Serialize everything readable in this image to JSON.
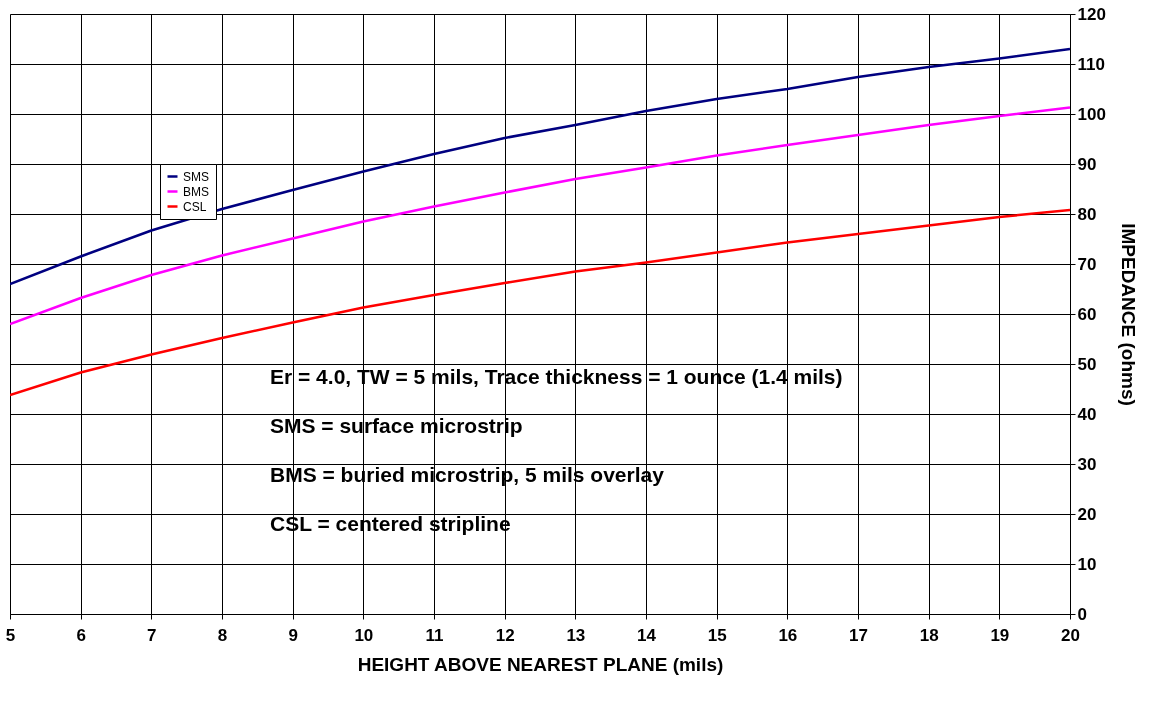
{
  "chart_data": {
    "type": "line",
    "xlabel": "HEIGHT ABOVE NEAREST PLANE (mils)",
    "ylabel": "IMPEDANCE (ohms)",
    "x": [
      5,
      6,
      7,
      8,
      9,
      10,
      11,
      12,
      13,
      14,
      15,
      16,
      17,
      18,
      19,
      20
    ],
    "series": [
      {
        "name": "SMS",
        "color": "#000080",
        "values": [
          66,
          71.5,
          76.7,
          81,
          84.8,
          88.5,
          92,
          95.2,
          97.8,
          100.6,
          103,
          105,
          107.4,
          109.4,
          111.1,
          113
        ]
      },
      {
        "name": "BMS",
        "color": "#ff00ff",
        "values": [
          58,
          63.2,
          67.8,
          71.7,
          75.1,
          78.5,
          81.5,
          84.3,
          87,
          89.3,
          91.7,
          93.8,
          95.8,
          97.8,
          99.6,
          101.3
        ]
      },
      {
        "name": "CSL",
        "color": "#ff0000",
        "values": [
          43.8,
          48.3,
          51.9,
          55.2,
          58.3,
          61.3,
          63.8,
          66.2,
          68.5,
          70.3,
          72.3,
          74.3,
          76,
          77.7,
          79.4,
          80.8
        ]
      }
    ],
    "xlim": [
      5,
      20
    ],
    "xticks": [
      5,
      6,
      7,
      8,
      9,
      10,
      11,
      12,
      13,
      14,
      15,
      16,
      17,
      18,
      19,
      20
    ],
    "ylim": [
      0,
      120
    ],
    "yticks": [
      0,
      10,
      20,
      30,
      40,
      50,
      60,
      70,
      80,
      90,
      100,
      110,
      120
    ],
    "grid": true,
    "legend": "top left",
    "marker": "none",
    "line_style": "solid",
    "annotations": [
      "Er = 4.0, TW = 5 mils, Trace thickness = 1 ounce (1.4 mils)",
      "SMS = surface microstrip",
      "BMS = buried microstrip, 5 mils overlay",
      "CSL = centered stripline"
    ]
  }
}
